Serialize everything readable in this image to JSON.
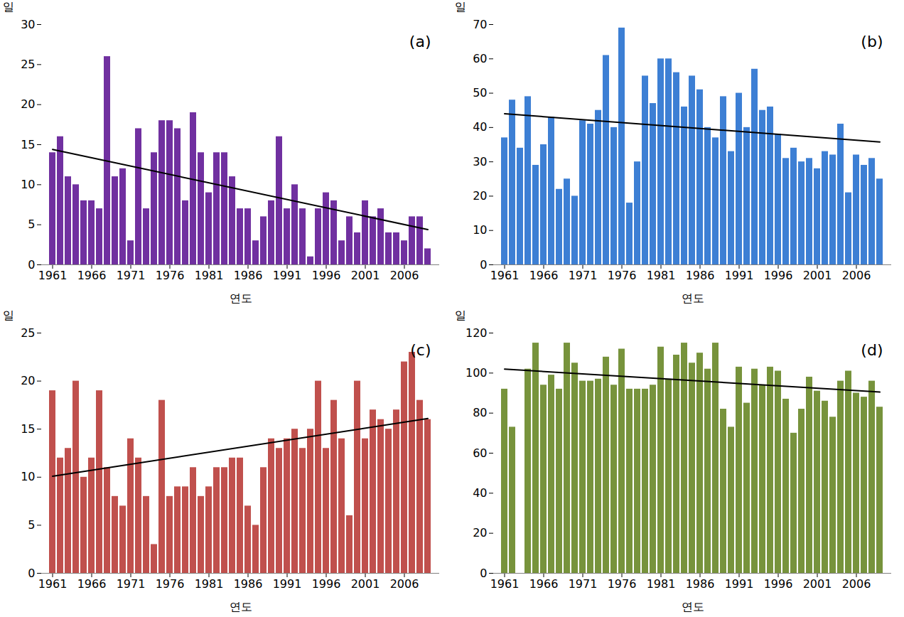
{
  "chart_data": [
    {
      "type": "bar",
      "annotation": "(a)",
      "ylabel": "일",
      "xlabel": "연도",
      "color": "#7030a0",
      "x": [
        1961,
        1962,
        1963,
        1964,
        1965,
        1966,
        1967,
        1968,
        1969,
        1970,
        1971,
        1972,
        1973,
        1974,
        1975,
        1976,
        1977,
        1978,
        1979,
        1980,
        1981,
        1982,
        1983,
        1984,
        1985,
        1986,
        1987,
        1988,
        1989,
        1990,
        1991,
        1992,
        1993,
        1994,
        1995,
        1996,
        1997,
        1998,
        1999,
        2000,
        2001,
        2002,
        2003,
        2004,
        2005,
        2006,
        2007,
        2008,
        2009
      ],
      "values": [
        14,
        16,
        11,
        10,
        8,
        8,
        7,
        26,
        11,
        12,
        3,
        17,
        7,
        14,
        18,
        18,
        17,
        8,
        19,
        14,
        9,
        14,
        14,
        11,
        7,
        7,
        3,
        6,
        8,
        16,
        7,
        10,
        7,
        1,
        7,
        9,
        8,
        3,
        6,
        4,
        8,
        6,
        7,
        4,
        4,
        3,
        6,
        6,
        2
      ],
      "xticks": [
        1961,
        1966,
        1971,
        1976,
        1981,
        1986,
        1991,
        1996,
        2001,
        2006
      ],
      "ylim": [
        0,
        30
      ],
      "yticks": [
        0,
        5,
        10,
        15,
        20,
        25,
        30
      ],
      "trend_line": {
        "type": "line",
        "color": "#000000",
        "x": [
          1961,
          2009
        ],
        "values": [
          14.4,
          4.4
        ]
      }
    },
    {
      "type": "bar",
      "annotation": "(b)",
      "ylabel": "일",
      "xlabel": "연도",
      "color": "#3d7fd4",
      "x": [
        1961,
        1962,
        1963,
        1964,
        1965,
        1966,
        1967,
        1968,
        1969,
        1970,
        1971,
        1972,
        1973,
        1974,
        1975,
        1976,
        1977,
        1978,
        1979,
        1980,
        1981,
        1982,
        1983,
        1984,
        1985,
        1986,
        1987,
        1988,
        1989,
        1990,
        1991,
        1992,
        1993,
        1994,
        1995,
        1996,
        1997,
        1998,
        1999,
        2000,
        2001,
        2002,
        2003,
        2004,
        2005,
        2006,
        2007,
        2008,
        2009
      ],
      "values": [
        37,
        48,
        34,
        49,
        29,
        35,
        43,
        22,
        25,
        20,
        42,
        41,
        45,
        61,
        40,
        69,
        18,
        30,
        55,
        47,
        60,
        60,
        56,
        46,
        55,
        51,
        40,
        37,
        49,
        33,
        50,
        40,
        57,
        45,
        46,
        38,
        31,
        34,
        30,
        31,
        28,
        33,
        32,
        41,
        21,
        32,
        29,
        31,
        25
      ],
      "xticks": [
        1961,
        1966,
        1971,
        1976,
        1981,
        1986,
        1991,
        1996,
        2001,
        2006
      ],
      "ylim": [
        0,
        70
      ],
      "yticks": [
        0,
        10,
        20,
        30,
        40,
        50,
        60,
        70
      ],
      "trend_line": {
        "type": "line",
        "color": "#000000",
        "x": [
          1961,
          2009
        ],
        "values": [
          44,
          35.8
        ]
      }
    },
    {
      "type": "bar",
      "annotation": "(c)",
      "ylabel": "일",
      "xlabel": "연도",
      "color": "#c0504d",
      "x": [
        1961,
        1962,
        1963,
        1964,
        1965,
        1966,
        1967,
        1968,
        1969,
        1970,
        1971,
        1972,
        1973,
        1974,
        1975,
        1976,
        1977,
        1978,
        1979,
        1980,
        1981,
        1982,
        1983,
        1984,
        1985,
        1986,
        1987,
        1988,
        1989,
        1990,
        1991,
        1992,
        1993,
        1994,
        1995,
        1996,
        1997,
        1998,
        1999,
        2000,
        2001,
        2002,
        2003,
        2004,
        2005,
        2006,
        2007,
        2008,
        2009
      ],
      "values": [
        19,
        12,
        13,
        20,
        10,
        12,
        19,
        11,
        8,
        7,
        14,
        12,
        8,
        3,
        18,
        8,
        9,
        9,
        11,
        8,
        9,
        11,
        11,
        12,
        12,
        7,
        5,
        11,
        14,
        13,
        14,
        15,
        13,
        15,
        20,
        13,
        18,
        14,
        6,
        20,
        14,
        17,
        16,
        15,
        17,
        22,
        23,
        18,
        16
      ],
      "xticks": [
        1961,
        1966,
        1971,
        1976,
        1981,
        1986,
        1991,
        1996,
        2001,
        2006
      ],
      "ylim": [
        0,
        25
      ],
      "yticks": [
        0,
        5,
        10,
        15,
        20,
        25
      ],
      "trend_line": {
        "type": "line",
        "color": "#000000",
        "x": [
          1961,
          2009
        ],
        "values": [
          10.1,
          16.1
        ]
      }
    },
    {
      "type": "bar",
      "annotation": "(d)",
      "ylabel": "일",
      "xlabel": "연도",
      "color": "#77933c",
      "x": [
        1961,
        1962,
        1963,
        1964,
        1965,
        1966,
        1967,
        1968,
        1969,
        1970,
        1971,
        1972,
        1973,
        1974,
        1975,
        1976,
        1977,
        1978,
        1979,
        1980,
        1981,
        1982,
        1983,
        1984,
        1985,
        1986,
        1987,
        1988,
        1989,
        1990,
        1991,
        1992,
        1993,
        1994,
        1995,
        1996,
        1997,
        1998,
        1999,
        2000,
        2001,
        2002,
        2003,
        2004,
        2005,
        2006,
        2007,
        2008,
        2009
      ],
      "values": [
        92,
        73,
        null,
        102,
        115,
        94,
        99,
        92,
        115,
        105,
        96,
        96,
        97,
        108,
        94,
        112,
        92,
        92,
        92,
        94,
        113,
        97,
        109,
        115,
        105,
        110,
        102,
        115,
        82,
        73,
        103,
        85,
        102,
        94,
        103,
        101,
        87,
        70,
        82,
        98,
        91,
        86,
        78,
        96,
        101,
        90,
        88,
        96,
        83
      ],
      "xticks": [
        1961,
        1966,
        1971,
        1976,
        1981,
        1986,
        1991,
        1996,
        2001,
        2006
      ],
      "ylim": [
        0,
        120
      ],
      "yticks": [
        0,
        20,
        40,
        60,
        80,
        100,
        120
      ],
      "trend_line": {
        "type": "line",
        "color": "#000000",
        "x": [
          1961,
          2009
        ],
        "values": [
          102,
          90.5
        ]
      }
    }
  ]
}
